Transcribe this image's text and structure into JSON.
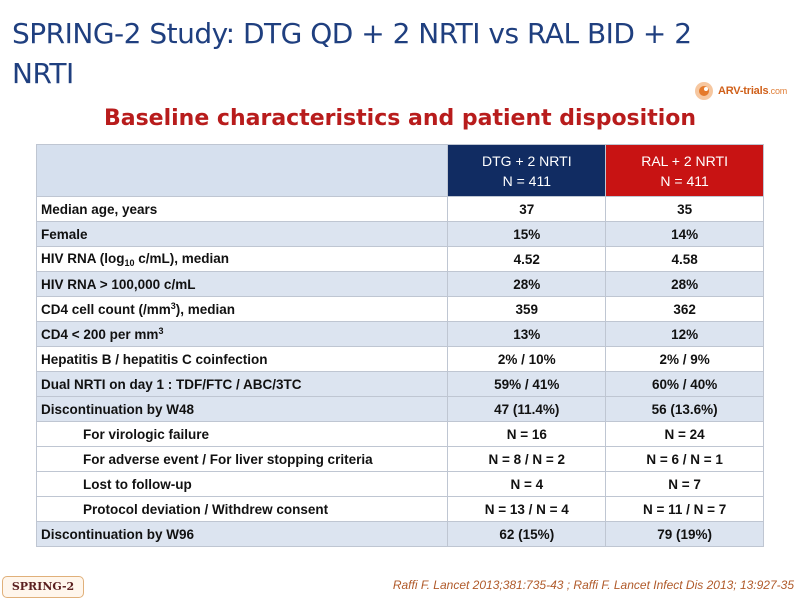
{
  "slide": {
    "title": "SPRING-2 Study: DTG QD + 2 NRTI vs RAL BID + 2 NRTI",
    "subtitle": "Baseline characteristics and patient disposition",
    "logo_text": "ARV-trials",
    "logo_tld": ".com",
    "badge": "SPRING-2",
    "reference": "Raffi F. Lancet 2013;381:735-43 ; Raffi F. Lancet Infect Dis 2013; 13:927-35"
  },
  "table": {
    "columns": [
      {
        "label": "DTG + 2 NRTI",
        "n": "N = 411",
        "color": "#112c62"
      },
      {
        "label": "RAL + 2 NRTI",
        "n": "N = 411",
        "color": "#c81313"
      }
    ],
    "rows": [
      {
        "label": "Median age, years",
        "dtg": "37",
        "ral": "35"
      },
      {
        "label": "Female",
        "dtg": "15%",
        "ral": "14%"
      },
      {
        "label_pre": "HIV RNA (log",
        "label_sub": "10",
        "label_post": " c/mL), median",
        "dtg": "4.52",
        "ral": "4.58"
      },
      {
        "label": "HIV RNA > 100,000 c/mL",
        "dtg": "28%",
        "ral": "28%"
      },
      {
        "label_pre": "CD4 cell count (/mm",
        "label_sup": "3",
        "label_post": "), median",
        "dtg": "359",
        "ral": "362"
      },
      {
        "label_pre": "CD4 < 200 per mm",
        "label_sup": "3",
        "label_post": "",
        "dtg": "13%",
        "ral": "12%"
      },
      {
        "label": "Hepatitis B / hepatitis C coinfection",
        "dtg": "2% / 10%",
        "ral": "2% / 9%"
      },
      {
        "label": "Dual NRTI on day 1 : TDF/FTC / ABC/3TC",
        "dtg": "59% / 41%",
        "ral": "60% / 40%"
      },
      {
        "label": "Discontinuation by W48",
        "dtg": "47 (11.4%)",
        "ral": "56 (13.6%)"
      },
      {
        "label": "For virologic failure",
        "dtg": "N = 16",
        "ral": "N = 24"
      },
      {
        "label": "For adverse event / For liver stopping criteria",
        "dtg": "N = 8 / N = 2",
        "ral": "N = 6 / N  = 1"
      },
      {
        "label": "Lost to follow-up",
        "dtg": "N = 4",
        "ral": "N = 7"
      },
      {
        "label": "Protocol deviation / Withdrew consent",
        "dtg": "N = 13 / N = 4",
        "ral": "N = 11 / N = 7"
      },
      {
        "label": "Discontinuation by W96",
        "dtg": "62 (15%)",
        "ral": "79 (19%)"
      }
    ]
  }
}
